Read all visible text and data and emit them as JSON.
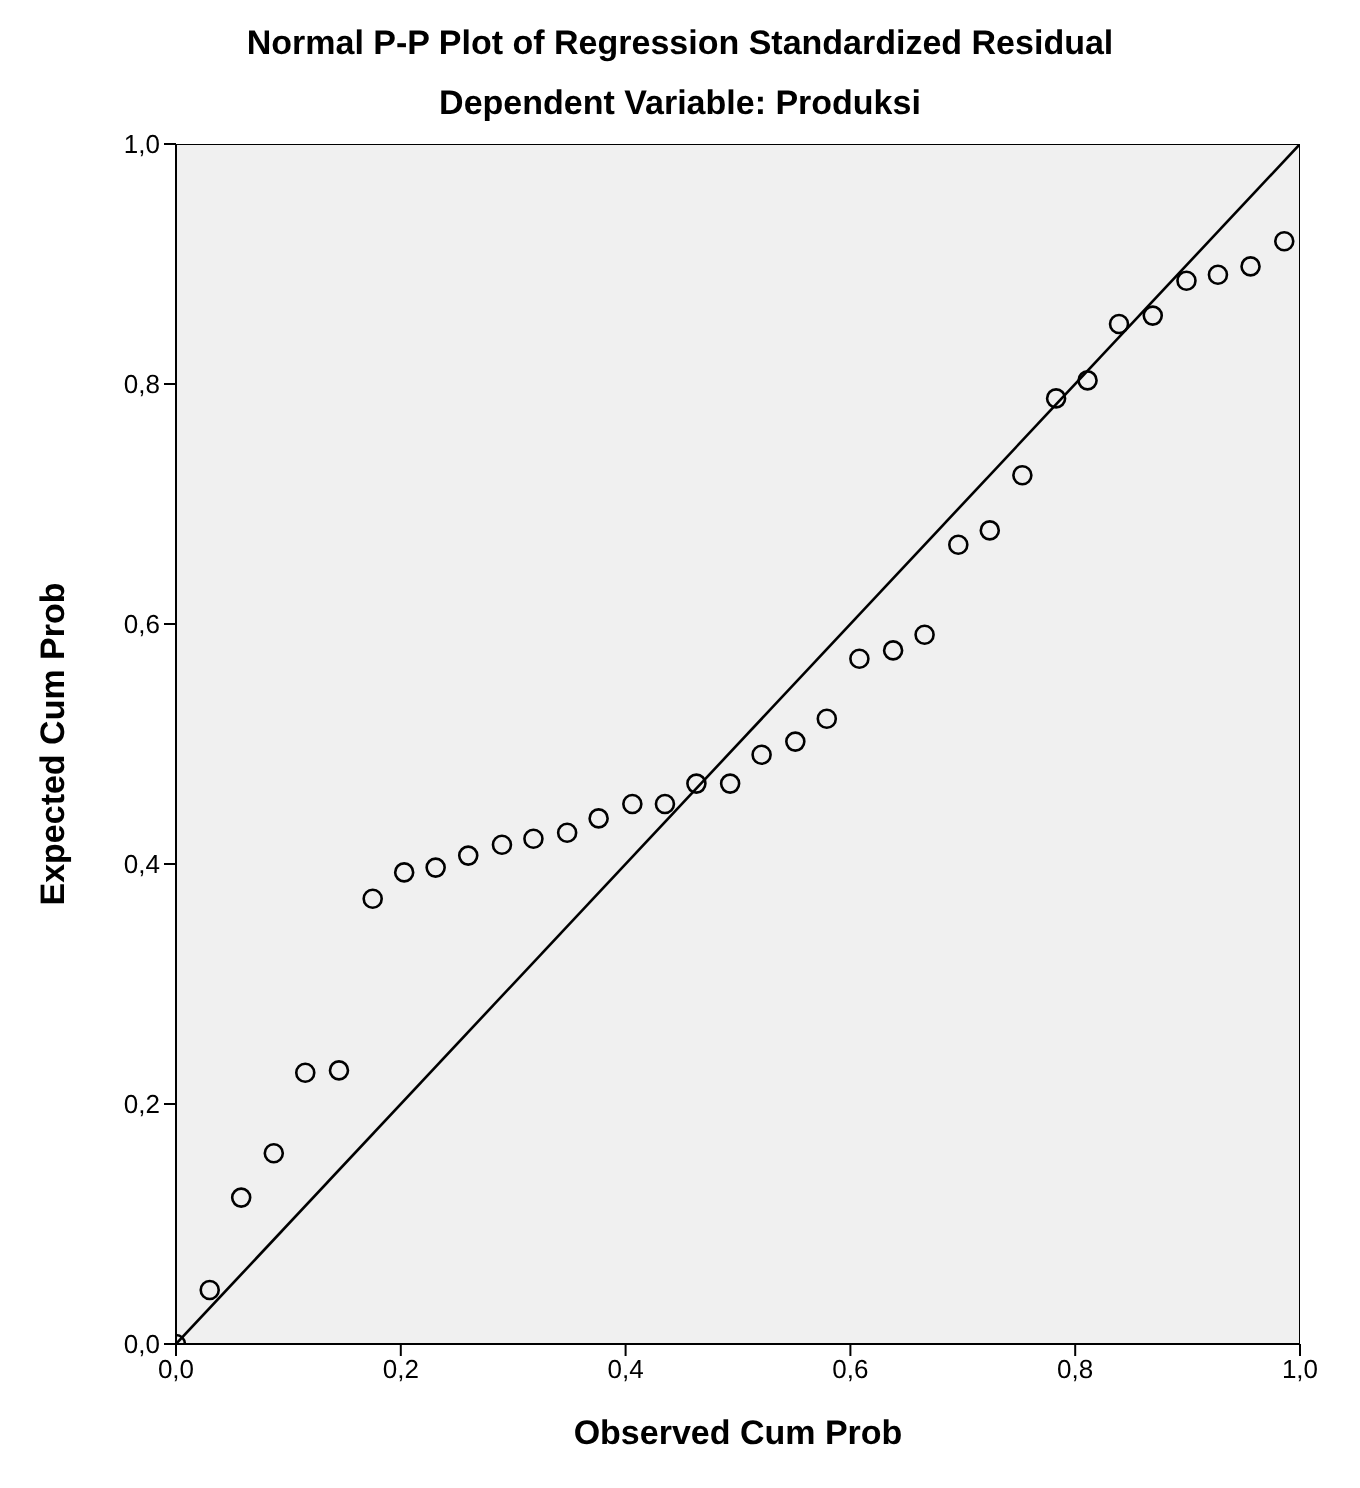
{
  "chart_data": {
    "type": "scatter",
    "title": "Normal P-P Plot of Regression Standardized Residual",
    "subtitle": "Dependent Variable: Produksi",
    "xlabel": "Observed Cum Prob",
    "ylabel": "Expected Cum Prob",
    "xlim": [
      0,
      1
    ],
    "ylim": [
      0,
      1
    ],
    "xticks": [
      {
        "value": 0,
        "label": "0,0"
      },
      {
        "value": 0.2,
        "label": "0,2"
      },
      {
        "value": 0.4,
        "label": "0,4"
      },
      {
        "value": 0.6,
        "label": "0,6"
      },
      {
        "value": 0.8,
        "label": "0,8"
      },
      {
        "value": 1,
        "label": "1,0"
      }
    ],
    "yticks": [
      {
        "value": 0,
        "label": "0,0"
      },
      {
        "value": 0.2,
        "label": "0,2"
      },
      {
        "value": 0.4,
        "label": "0,4"
      },
      {
        "value": 0.6,
        "label": "0,6"
      },
      {
        "value": 0.8,
        "label": "0,8"
      },
      {
        "value": 1,
        "label": "1,0"
      }
    ],
    "grid": false,
    "legend": false,
    "series": [
      {
        "marker": "circle",
        "color": "#000000",
        "x": [
          0.0,
          0.03,
          0.058,
          0.087,
          0.115,
          0.145,
          0.175,
          0.203,
          0.231,
          0.26,
          0.29,
          0.318,
          0.348,
          0.376,
          0.406,
          0.435,
          0.463,
          0.493,
          0.521,
          0.551,
          0.579,
          0.608,
          0.638,
          0.666,
          0.696,
          0.724,
          0.753,
          0.783,
          0.811,
          0.839,
          0.869,
          0.899,
          0.927,
          0.956,
          0.986
        ],
        "values": [
          0.0,
          0.045,
          0.122,
          0.159,
          0.226,
          0.228,
          0.371,
          0.393,
          0.397,
          0.407,
          0.416,
          0.421,
          0.426,
          0.438,
          0.45,
          0.45,
          0.467,
          0.467,
          0.491,
          0.502,
          0.521,
          0.571,
          0.578,
          0.591,
          0.666,
          0.678,
          0.724,
          0.788,
          0.803,
          0.85,
          0.857,
          0.886,
          0.891,
          0.898,
          0.919
        ]
      },
      {
        "type": "line",
        "marker": "none",
        "color": "#000000",
        "line_style": "solid",
        "x": [
          0,
          1
        ],
        "values": [
          0,
          1
        ]
      }
    ]
  }
}
